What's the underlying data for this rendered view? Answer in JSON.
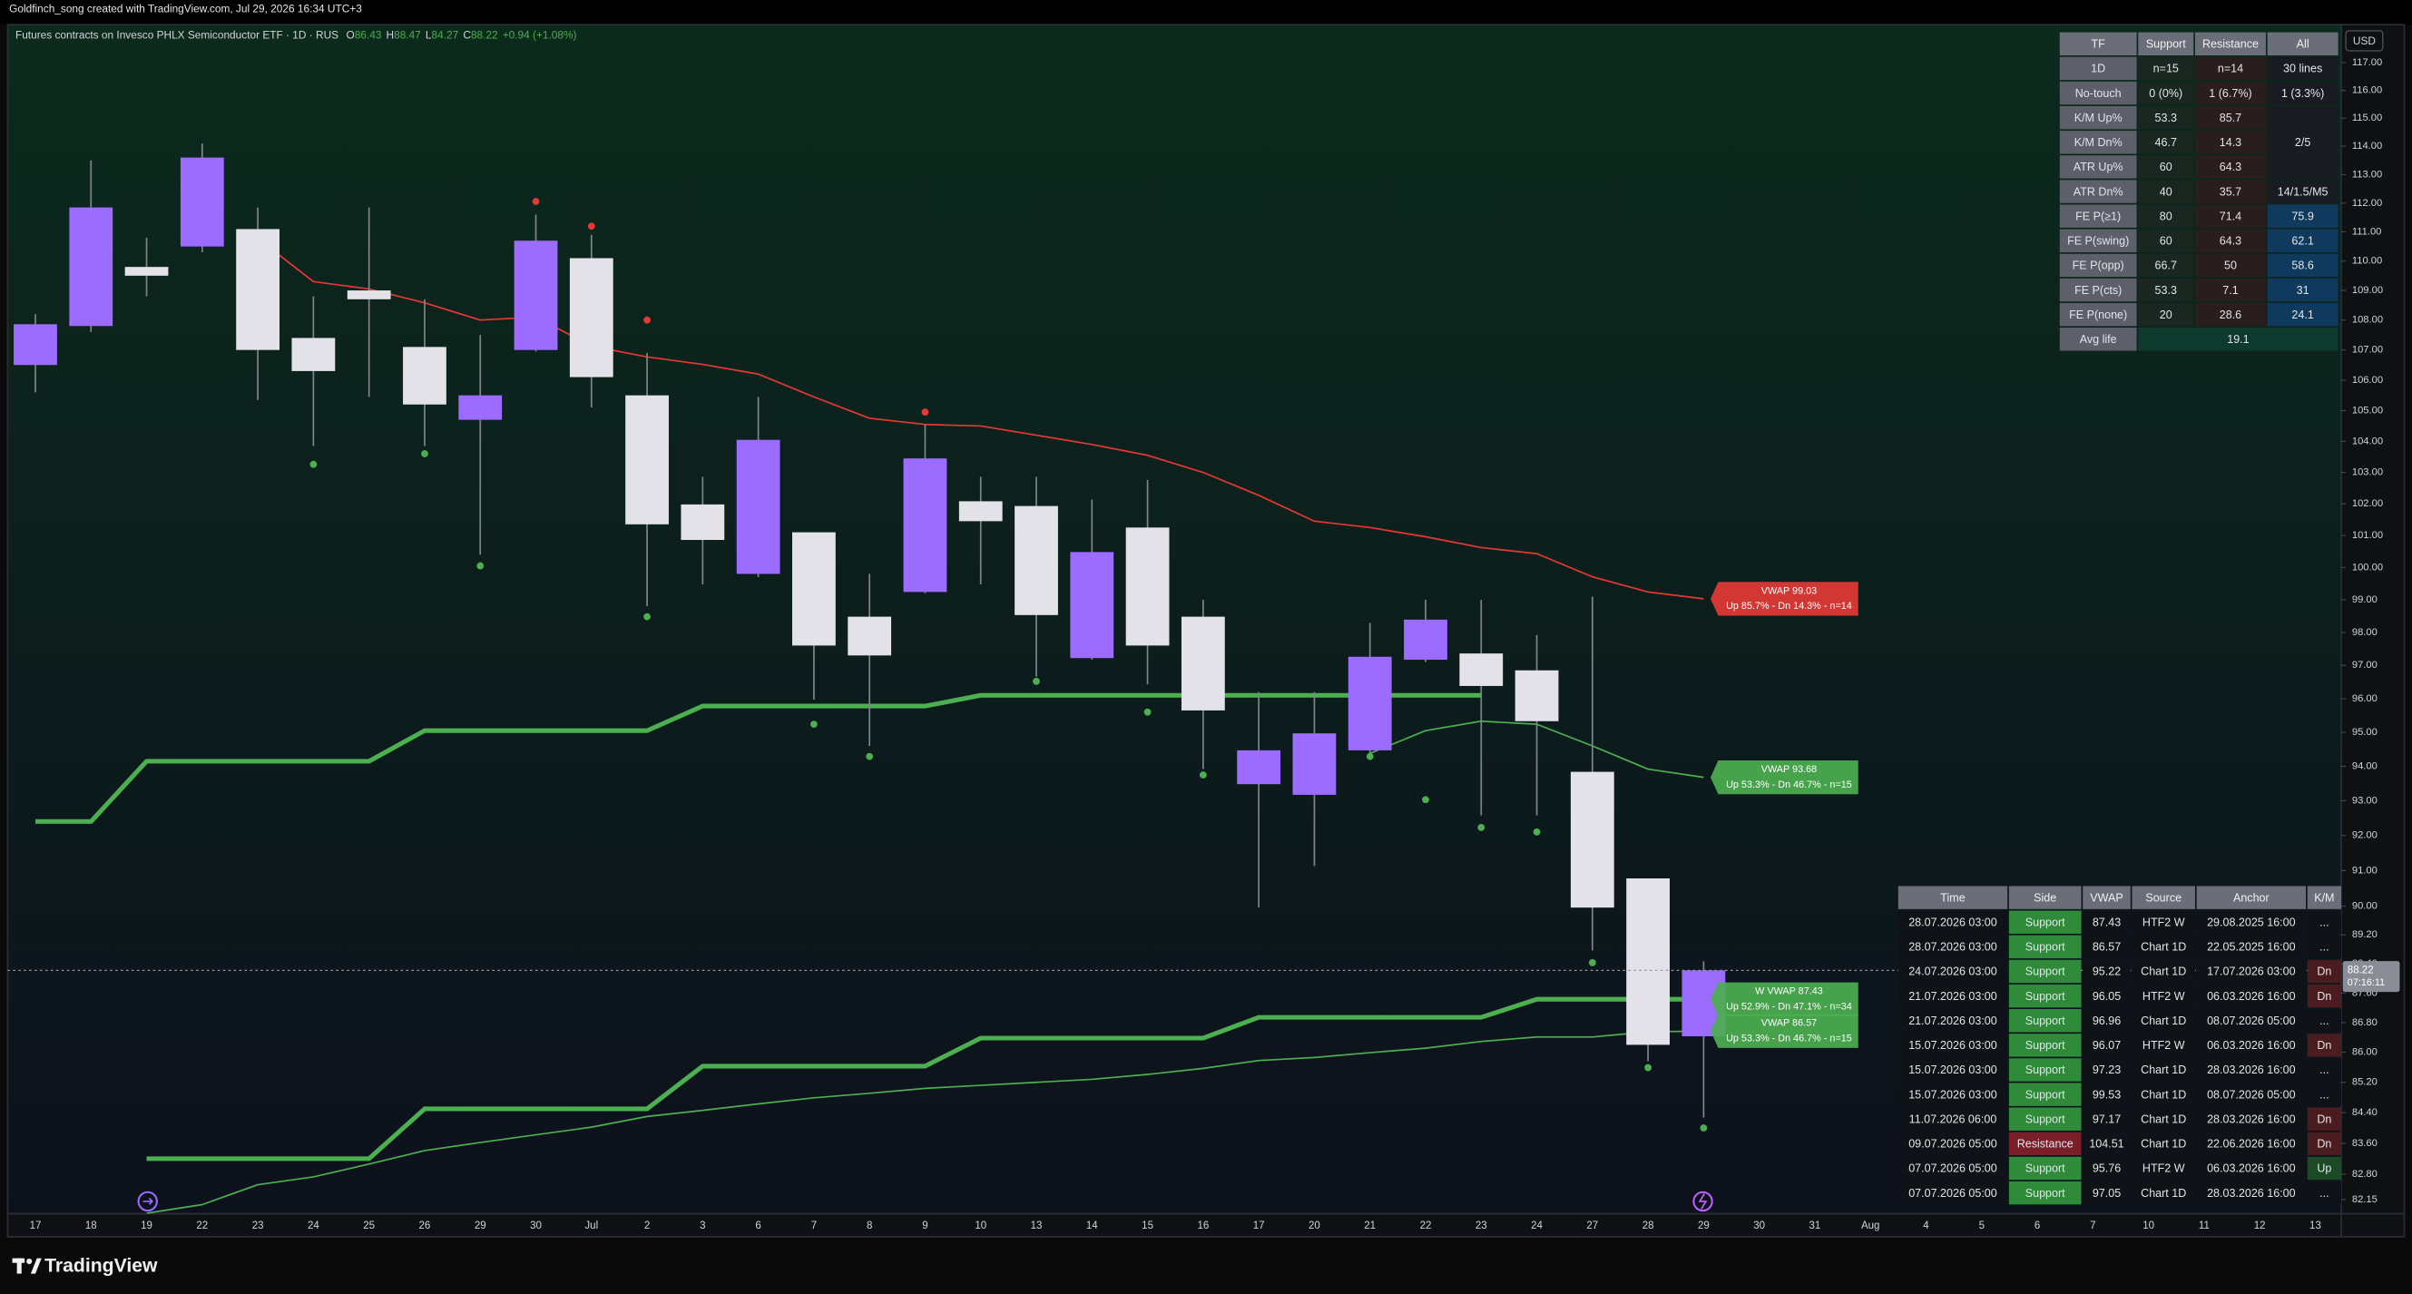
{
  "header": {
    "credit": "Goldfinch_song created with TradingView.com, Jul 29, 2026 16:34 UTC+3"
  },
  "chart_data": {
    "type": "candlestick",
    "title": "Futures contracts on Invesco PHLX Semiconductor ETF · 1D · RUS",
    "ohlc_labels": [
      "O",
      "H",
      "L",
      "C"
    ],
    "change": "+0.94 (+1.08%)",
    "currency": "USD",
    "countdown": "07:16:11",
    "categories": [
      "17",
      "18",
      "19",
      "22",
      "23",
      "24",
      "25",
      "26",
      "29",
      "30",
      "Jul",
      "2",
      "3",
      "6",
      "7",
      "8",
      "9",
      "10",
      "13",
      "14",
      "15",
      "16",
      "17",
      "20",
      "21",
      "22",
      "23",
      "24",
      "27",
      "28",
      "29",
      "30",
      "31",
      "Aug",
      "4",
      "5",
      "6",
      "7",
      "10",
      "11",
      "12",
      "13"
    ],
    "open": [
      106.5,
      107.8,
      109.8,
      110.5,
      111.1,
      107.4,
      109.0,
      107.1,
      104.7,
      107.0,
      110.1,
      105.5,
      101.98,
      99.8,
      101.1,
      98.48,
      99.24,
      102.08,
      101.93,
      97.22,
      101.25,
      98.48,
      93.48,
      93.17,
      94.47,
      97.17,
      97.36,
      96.85,
      93.84,
      90.78,
      86.43,
      null,
      null,
      null,
      null,
      null,
      null,
      null,
      null,
      null,
      null,
      null
    ],
    "high": [
      108.2,
      113.5,
      110.8,
      114.1,
      111.85,
      108.8,
      111.85,
      108.7,
      107.5,
      111.6,
      110.9,
      106.9,
      102.86,
      105.45,
      101.1,
      99.8,
      104.55,
      102.86,
      102.86,
      102.13,
      102.76,
      99.0,
      96.2,
      96.2,
      98.29,
      99.0,
      99.0,
      97.92,
      99.1,
      90.78,
      88.47,
      null,
      null,
      null,
      null,
      null,
      null,
      null,
      null,
      null,
      null,
      null
    ],
    "low": [
      105.6,
      107.6,
      108.8,
      110.3,
      105.35,
      103.85,
      105.45,
      103.85,
      100.4,
      106.95,
      105.1,
      98.8,
      99.47,
      99.7,
      95.97,
      94.6,
      99.2,
      99.47,
      96.66,
      97.17,
      96.43,
      93.92,
      89.96,
      91.13,
      94.38,
      97.1,
      92.58,
      92.58,
      88.77,
      85.76,
      84.27,
      null,
      null,
      null,
      null,
      null,
      null,
      null,
      null,
      null,
      null,
      null
    ],
    "close": [
      107.86,
      111.85,
      109.5,
      113.6,
      107.0,
      106.3,
      108.7,
      105.2,
      105.5,
      110.7,
      106.1,
      101.35,
      100.86,
      104.05,
      97.6,
      97.3,
      103.45,
      101.45,
      98.53,
      100.48,
      97.6,
      95.65,
      94.47,
      94.97,
      97.26,
      98.39,
      96.38,
      95.33,
      89.96,
      86.2,
      88.22,
      null,
      null,
      null,
      null,
      null,
      null,
      null,
      null,
      null,
      null,
      null
    ],
    "up_color": "#9b6cff",
    "down_color": "#e2e2e8",
    "wick_color": "#80838c",
    "lines": [
      {
        "color": "#e53935",
        "width": 1,
        "label": [
          "VWAP 99.03",
          "Up 85.7% - Dn 14.3% - n=14"
        ],
        "values": [
          null,
          null,
          null,
          null,
          110.78,
          109.3,
          109.05,
          108.58,
          108.0,
          108.1,
          107.13,
          106.77,
          106.52,
          106.2,
          105.45,
          104.75,
          104.55,
          104.5,
          104.2,
          103.9,
          103.55,
          103.0,
          102.27,
          101.45,
          101.25,
          100.96,
          100.62,
          100.43,
          99.71,
          99.24,
          99.03,
          null,
          null,
          null,
          null,
          null,
          null,
          null,
          null,
          null,
          null,
          null
        ]
      },
      {
        "color": "#4caf50",
        "width": 3,
        "values": [
          92.4,
          92.4,
          94.15,
          94.15,
          94.15,
          94.15,
          94.15,
          95.05,
          95.05,
          95.05,
          95.05,
          95.05,
          95.78,
          95.78,
          95.78,
          95.78,
          95.78,
          96.1,
          96.1,
          96.1,
          96.1,
          96.1,
          96.1,
          96.1,
          96.1,
          96.1,
          96.1,
          null,
          null,
          null,
          null,
          null,
          null,
          null,
          null,
          null,
          null,
          null,
          null,
          null,
          null,
          null
        ]
      },
      {
        "color": "#4caf50",
        "width": 1,
        "label": [
          "VWAP 93.68",
          "Up 53.3% - Dn 46.7% - n=15"
        ],
        "values": [
          null,
          null,
          null,
          null,
          null,
          null,
          null,
          null,
          null,
          null,
          null,
          null,
          null,
          null,
          null,
          null,
          null,
          null,
          null,
          null,
          null,
          null,
          null,
          null,
          94.38,
          95.05,
          95.33,
          95.24,
          94.6,
          93.92,
          93.68,
          null,
          null,
          null,
          null,
          null,
          null,
          null,
          null,
          null,
          null,
          null
        ]
      },
      {
        "color": "#4caf50",
        "width": 3,
        "label": [
          "W VWAP 87.43",
          "Up 52.9% - Dn 47.1% - n=34"
        ],
        "values": [
          null,
          null,
          83.2,
          83.2,
          83.2,
          83.2,
          83.2,
          84.5,
          84.5,
          84.5,
          84.5,
          84.5,
          85.63,
          85.63,
          85.63,
          85.63,
          85.63,
          86.38,
          86.38,
          86.38,
          86.38,
          86.38,
          86.94,
          86.94,
          86.94,
          86.94,
          86.94,
          87.43,
          87.43,
          87.43,
          87.43,
          null,
          null,
          null,
          null,
          null,
          null,
          null,
          null,
          null,
          null,
          null
        ]
      },
      {
        "color": "#4caf50",
        "width": 1,
        "label": [
          "VWAP 86.57",
          "Up 53.3% - Dn 46.7% - n=15"
        ],
        "values": [
          null,
          null,
          81.8,
          82.02,
          82.53,
          82.73,
          83.06,
          83.41,
          83.62,
          83.82,
          84.02,
          84.3,
          84.46,
          84.63,
          84.79,
          84.91,
          85.04,
          85.12,
          85.2,
          85.28,
          85.41,
          85.57,
          85.78,
          85.86,
          85.99,
          86.11,
          86.29,
          86.41,
          86.41,
          86.55,
          86.57,
          null,
          null,
          null,
          null,
          null,
          null,
          null,
          null,
          null,
          null,
          null
        ]
      }
    ],
    "pivot_highs": {
      "color": "#e53935",
      "values": [
        null,
        null,
        null,
        null,
        null,
        null,
        null,
        null,
        null,
        112.06,
        111.2,
        108.0,
        null,
        null,
        null,
        null,
        104.95,
        null,
        null,
        null,
        null,
        null,
        null,
        null,
        null,
        null,
        null,
        null,
        null,
        null,
        null,
        null,
        null,
        null,
        null,
        null,
        null,
        null,
        null,
        null,
        null,
        null
      ]
    },
    "pivot_lows": {
      "color": "#4caf50",
      "values": [
        null,
        null,
        null,
        null,
        null,
        103.26,
        null,
        103.6,
        100.05,
        null,
        null,
        98.48,
        null,
        null,
        95.24,
        94.29,
        null,
        null,
        96.52,
        null,
        95.6,
        93.75,
        null,
        null,
        94.29,
        93.03,
        92.23,
        92.1,
        88.43,
        85.59,
        84.0,
        null,
        null,
        null,
        null,
        null,
        null,
        null,
        null,
        null,
        null,
        null
      ]
    },
    "log_scale": true,
    "grid": false,
    "ylim": [
      81.75,
      118.34
    ],
    "yticks": [
      {
        "value": 117,
        "label": "117.00"
      },
      {
        "value": 116,
        "label": "116.00"
      },
      {
        "value": 115,
        "label": "115.00"
      },
      {
        "value": 114,
        "label": "114.00"
      },
      {
        "value": 113,
        "label": "113.00"
      },
      {
        "value": 112,
        "label": "112.00"
      },
      {
        "value": 111,
        "label": "111.00"
      },
      {
        "value": 110,
        "label": "110.00"
      },
      {
        "value": 109,
        "label": "109.00"
      },
      {
        "value": 108,
        "label": "108.00"
      },
      {
        "value": 107,
        "label": "107.00"
      },
      {
        "value": 106,
        "label": "106.00"
      },
      {
        "value": 105,
        "label": "105.00"
      },
      {
        "value": 104,
        "label": "104.00"
      },
      {
        "value": 103,
        "label": "103.00"
      },
      {
        "value": 102,
        "label": "102.00"
      },
      {
        "value": 101,
        "label": "101.00"
      },
      {
        "value": 100,
        "label": "100.00"
      },
      {
        "value": 99,
        "label": "99.00"
      },
      {
        "value": 98,
        "label": "98.00"
      },
      {
        "value": 97,
        "label": "97.00"
      },
      {
        "value": 96,
        "label": "96.00"
      },
      {
        "value": 95,
        "label": "95.00"
      },
      {
        "value": 94,
        "label": "94.00"
      },
      {
        "value": 93,
        "label": "93.00"
      },
      {
        "value": 92,
        "label": "92.00"
      },
      {
        "value": 91,
        "label": "91.00"
      },
      {
        "value": 90,
        "label": "90.00"
      },
      {
        "value": 89.2,
        "label": "89.20"
      },
      {
        "value": 88.4,
        "label": "88.40"
      },
      {
        "value": 87.6,
        "label": "87.60"
      },
      {
        "value": 86.8,
        "label": "86.80"
      },
      {
        "value": 86,
        "label": "86.00"
      },
      {
        "value": 85.2,
        "label": "85.20"
      },
      {
        "value": 84.4,
        "label": "84.40"
      },
      {
        "value": 83.6,
        "label": "83.60"
      },
      {
        "value": 82.8,
        "label": "82.80"
      },
      82.15
    ]
  },
  "stats_table": {
    "header": [
      "TF",
      "Support",
      "Resistance",
      "All"
    ],
    "rows": [
      [
        "1D",
        "n=15",
        "n=14",
        "30 lines"
      ],
      [
        "No-touch",
        "0 (0%)",
        "1 (6.7%)",
        "1 (3.3%)"
      ],
      [
        "K/M Up%",
        "53.3",
        "85.7",
        "2/5"
      ],
      [
        "K/M Dn%",
        "46.7",
        "14.3"
      ],
      [
        "ATR Up%",
        "60",
        "64.3"
      ],
      [
        "ATR Dn%",
        "40",
        "35.7",
        "14/1.5/M5"
      ],
      [
        "FE P(≥1)",
        "80",
        "71.4",
        "75.9"
      ],
      [
        "FE P(swing)",
        "60",
        "64.3",
        "62.1"
      ],
      [
        "FE P(opp)",
        "66.7",
        "50",
        "58.6"
      ],
      [
        "FE P(cts)",
        "53.3",
        "7.1",
        "31"
      ],
      [
        "FE P(none)",
        "20",
        "28.6",
        "24.1"
      ],
      [
        "Avg life",
        "19.1"
      ]
    ]
  },
  "levels_table": {
    "header": [
      "Time",
      "Side",
      "VWAP",
      "Source",
      "Anchor",
      "K/M"
    ],
    "rows": [
      [
        "28.07.2026 03:00",
        "Support",
        "87.43",
        "HTF2 W",
        "29.08.2025 16:00",
        "..."
      ],
      [
        "28.07.2026 03:00",
        "Support",
        "86.57",
        "Chart 1D",
        "22.05.2025 16:00",
        "..."
      ],
      [
        "24.07.2026 03:00",
        "Support",
        "95.22",
        "Chart 1D",
        "17.07.2026 03:00",
        "Dn"
      ],
      [
        "21.07.2026 03:00",
        "Support",
        "96.05",
        "HTF2 W",
        "06.03.2026 16:00",
        "Dn"
      ],
      [
        "21.07.2026 03:00",
        "Support",
        "96.96",
        "Chart 1D",
        "08.07.2026 05:00",
        "..."
      ],
      [
        "15.07.2026 03:00",
        "Support",
        "96.07",
        "HTF2 W",
        "06.03.2026 16:00",
        "Dn"
      ],
      [
        "15.07.2026 03:00",
        "Support",
        "97.23",
        "Chart 1D",
        "28.03.2026 16:00",
        "..."
      ],
      [
        "15.07.2026 03:00",
        "Support",
        "99.53",
        "Chart 1D",
        "08.07.2026 05:00",
        "..."
      ],
      [
        "11.07.2026 06:00",
        "Support",
        "97.17",
        "Chart 1D",
        "28.03.2026 16:00",
        "Dn"
      ],
      [
        "09.07.2026 05:00",
        "Resistance",
        "104.51",
        "Chart 1D",
        "22.06.2026 16:00",
        "Dn"
      ],
      [
        "07.07.2026 05:00",
        "Support",
        "95.76",
        "HTF2 W",
        "06.03.2026 16:00",
        "Up"
      ],
      [
        "07.07.2026 05:00",
        "Support",
        "97.05",
        "Chart 1D",
        "28.03.2026 16:00",
        "..."
      ]
    ]
  },
  "footer": {
    "logo": "TradingView"
  }
}
